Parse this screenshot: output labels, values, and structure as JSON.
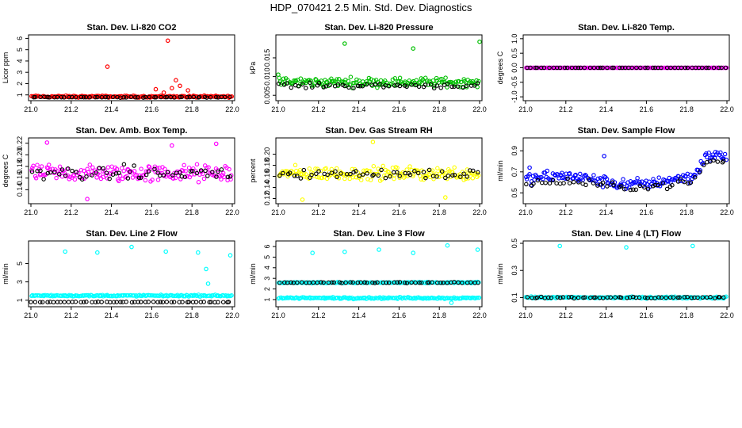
{
  "figure_title": "HDP_070421  2.5 Min. Std. Dev. Diagnostics",
  "chart_data": [
    {
      "type": "scatter",
      "title": "Stan. Dev. Li-820 CO2",
      "ylabel": "Licor ppm",
      "xlim": [
        21.0,
        22.0
      ],
      "ylim": [
        0.7,
        6.1
      ],
      "xticks": [
        "21.0",
        "21.2",
        "21.4",
        "21.6",
        "21.8",
        "22.0"
      ],
      "yticks": [
        "1",
        "2",
        "3",
        "4",
        "5",
        "6"
      ],
      "series": [
        {
          "name": "primary",
          "color": "#ff0000",
          "base": 0.85,
          "spread": 0.12,
          "outliers": [
            [
              21.38,
              3.5
            ],
            [
              21.68,
              5.8
            ],
            [
              21.72,
              2.3
            ],
            [
              21.74,
              1.8
            ],
            [
              21.62,
              1.5
            ],
            [
              21.7,
              1.6
            ],
            [
              21.78,
              1.4
            ],
            [
              21.66,
              1.2
            ]
          ]
        },
        {
          "name": "secondary",
          "color": "#000000",
          "base": 0.8,
          "spread": 0.05,
          "outliers": []
        }
      ]
    },
    {
      "type": "scatter",
      "title": "Stan. Dev. Li-820 Pressure",
      "ylabel": "kPa",
      "xlim": [
        21.0,
        22.0
      ],
      "ylim": [
        0.0042,
        0.0205
      ],
      "xticks": [
        "21.0",
        "21.2",
        "21.4",
        "21.6",
        "21.8",
        "22.0"
      ],
      "yticks": [
        "0.005",
        "0.010",
        "0.015"
      ],
      "series": [
        {
          "name": "primary",
          "color": "#00c000",
          "base": 0.0085,
          "spread": 0.0018,
          "outliers": [
            [
              21.0,
              0.0105
            ],
            [
              21.33,
              0.0188
            ],
            [
              21.67,
              0.0175
            ],
            [
              22.0,
              0.0193
            ]
          ]
        },
        {
          "name": "secondary",
          "color": "#000000",
          "base": 0.0076,
          "spread": 0.001,
          "outliers": []
        }
      ]
    },
    {
      "type": "scatter",
      "title": "Stan. Dev. Li-820 Temp.",
      "ylabel": "degrees C",
      "xlim": [
        21.0,
        22.0
      ],
      "ylim": [
        -1.05,
        1.05
      ],
      "xticks": [
        "21.0",
        "21.2",
        "21.4",
        "21.6",
        "21.8",
        "22.0"
      ],
      "yticks": [
        "-1.0",
        "-0.5",
        "0.0",
        "0.5",
        "1.0"
      ],
      "series": [
        {
          "name": "primary",
          "color": "#ff00ff",
          "base": 0.0,
          "spread": 0.0,
          "outliers": []
        },
        {
          "name": "secondary",
          "color": "#000000",
          "base": 0.0,
          "spread": 0.0,
          "outliers": []
        }
      ]
    },
    {
      "type": "scatter",
      "title": "Stan. Dev. Amb. Box Temp.",
      "ylabel": "degrees C",
      "xlim": [
        21.0,
        22.0
      ],
      "ylim": [
        0.12,
        0.225
      ],
      "xticks": [
        "21.0",
        "21.2",
        "21.4",
        "21.6",
        "21.8",
        "22.0"
      ],
      "yticks": [
        "0.14",
        "0.16",
        "0.18",
        "0.20",
        "0.22"
      ],
      "series": [
        {
          "name": "primary",
          "color": "#ff00ff",
          "base": 0.168,
          "spread": 0.022,
          "outliers": [
            [
              21.08,
              0.221
            ],
            [
              21.28,
              0.124
            ],
            [
              21.7,
              0.216
            ],
            [
              21.92,
              0.219
            ]
          ]
        },
        {
          "name": "secondary",
          "color": "#000000",
          "base": 0.168,
          "spread": 0.018,
          "outliers": []
        }
      ]
    },
    {
      "type": "scatter",
      "title": "Stan. Dev. Gas Stream RH",
      "ylabel": "percent",
      "xlim": [
        21.0,
        22.0
      ],
      "ylim": [
        0.115,
        0.225
      ],
      "xticks": [
        "21.0",
        "21.2",
        "21.4",
        "21.6",
        "21.8",
        "22.0"
      ],
      "yticks": [
        "0.12",
        "0.14",
        "0.16",
        "0.18",
        "0.20"
      ],
      "series": [
        {
          "name": "primary",
          "color": "#ffff00",
          "base": 0.165,
          "spread": 0.018,
          "outliers": [
            [
              21.47,
              0.222
            ],
            [
              21.12,
              0.118
            ],
            [
              21.83,
              0.122
            ]
          ]
        },
        {
          "name": "secondary",
          "color": "#000000",
          "base": 0.165,
          "spread": 0.015,
          "outliers": []
        }
      ]
    },
    {
      "type": "scatter",
      "title": "Stan. Dev. Sample Flow",
      "ylabel": "ml/min",
      "xlim": [
        21.0,
        22.0
      ],
      "ylim": [
        0.42,
        1.0
      ],
      "xticks": [
        "21.0",
        "21.2",
        "21.4",
        "21.6",
        "21.8",
        "22.0"
      ],
      "yticks": [
        "0.5",
        "0.7",
        "0.9"
      ],
      "series": [
        {
          "name": "primary",
          "color": "#0000ff",
          "base": 0.62,
          "spread": 0.08,
          "outliers": [
            [
              21.02,
              0.74
            ],
            [
              21.39,
              0.85
            ]
          ],
          "trend_end": 0.85
        },
        {
          "name": "secondary",
          "color": "#000000",
          "base": 0.58,
          "spread": 0.05,
          "outliers": [],
          "trend_end": 0.8
        }
      ]
    },
    {
      "type": "scatter",
      "title": "Stan. Dev. Line 2 Flow",
      "ylabel": "ml/min",
      "xlim": [
        21.0,
        22.0
      ],
      "ylim": [
        0.55,
        7.2
      ],
      "xticks": [
        "21.0",
        "21.2",
        "21.4",
        "21.6",
        "21.8",
        "22.0"
      ],
      "yticks": [
        "1",
        "3",
        "5"
      ],
      "series": [
        {
          "name": "primary",
          "color": "#00ffff",
          "base": 1.5,
          "spread": 0.12,
          "outliers": [
            [
              21.17,
              6.3
            ],
            [
              21.33,
              6.2
            ],
            [
              21.5,
              6.8
            ],
            [
              21.67,
              6.3
            ],
            [
              21.83,
              6.2
            ],
            [
              21.87,
              4.4
            ],
            [
              21.88,
              2.8
            ],
            [
              21.99,
              5.9
            ]
          ]
        },
        {
          "name": "secondary",
          "color": "#000000",
          "base": 0.8,
          "spread": 0.04,
          "outliers": []
        }
      ]
    },
    {
      "type": "scatter",
      "title": "Stan. Dev. Line 3 Flow",
      "ylabel": "ml/min",
      "xlim": [
        21.0,
        22.0
      ],
      "ylim": [
        0.55,
        6.3
      ],
      "xticks": [
        "21.0",
        "21.2",
        "21.4",
        "21.6",
        "21.8",
        "22.0"
      ],
      "yticks": [
        "1",
        "2",
        "3",
        "4",
        "5",
        "6"
      ],
      "series": [
        {
          "name": "primary",
          "color": "#00ffff",
          "base": 1.15,
          "spread": 0.12,
          "outliers": [
            [
              21.17,
              5.4
            ],
            [
              21.33,
              5.5
            ],
            [
              21.5,
              5.7
            ],
            [
              21.67,
              5.4
            ],
            [
              21.84,
              6.1
            ],
            [
              21.99,
              5.7
            ],
            [
              21.86,
              0.7
            ]
          ]
        },
        {
          "name": "primary-upper",
          "color": "#00ffff",
          "base": 2.6,
          "spread": 0.08,
          "outliers": []
        },
        {
          "name": "secondary",
          "color": "#000000",
          "base": 2.6,
          "spread": 0.06,
          "outliers": []
        }
      ]
    },
    {
      "type": "scatter",
      "title": "Stan. Dev. Line 4 (LT) Flow",
      "ylabel": "ml/min",
      "xlim": [
        21.0,
        22.0
      ],
      "ylim": [
        0.05,
        0.5
      ],
      "xticks": [
        "21.0",
        "21.2",
        "21.4",
        "21.6",
        "21.8",
        "22.0"
      ],
      "yticks": [
        "0.1",
        "0.3",
        "0.5"
      ],
      "series": [
        {
          "name": "primary",
          "color": "#00ffff",
          "base": 0.1,
          "spread": 0.01,
          "outliers": [
            [
              21.17,
              0.48
            ],
            [
              21.5,
              0.47
            ],
            [
              21.83,
              0.48
            ]
          ]
        },
        {
          "name": "secondary",
          "color": "#000000",
          "base": 0.1,
          "spread": 0.008,
          "outliers": []
        }
      ]
    }
  ]
}
